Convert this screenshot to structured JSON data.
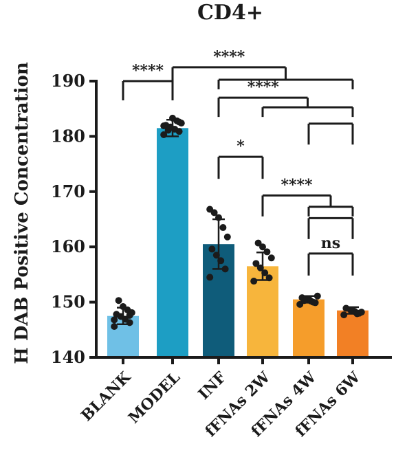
{
  "chart_data": {
    "type": "bar",
    "title": "CD4+",
    "xlabel": "",
    "ylabel": "H DAB Positive Concentration",
    "ylim": [
      140,
      190
    ],
    "yticks": [
      140,
      150,
      160,
      170,
      180,
      190
    ],
    "categories": [
      "BLANK",
      "MODEL",
      "INF",
      "fFNAs 2W",
      "fFNAs 4W",
      "fFNAs 6W"
    ],
    "values": [
      147.5,
      181.5,
      160.5,
      156.5,
      150.5,
      148.5
    ],
    "errors": [
      1.5,
      1.5,
      4.5,
      2.5,
      0.6,
      0.6
    ],
    "colors": [
      "#6fc0e6",
      "#1d9ec4",
      "#0f5c7a",
      "#f7b53c",
      "#f59d2b",
      "#f28025"
    ],
    "points": [
      [
        145.6,
        146.3,
        146.9,
        147.4,
        147.8,
        148.1,
        148.6,
        149.2,
        150.3,
        146.8,
        147.6
      ],
      [
        180.3,
        180.9,
        181.3,
        181.7,
        182.0,
        182.4,
        182.8,
        183.3,
        181.1,
        181.9,
        182.6
      ],
      [
        154.5,
        156.0,
        157.5,
        158.5,
        159.6,
        161.8,
        163.5,
        165.3,
        166.2,
        166.8
      ],
      [
        153.8,
        154.4,
        155.3,
        156.2,
        157.0,
        158.0,
        159.1,
        160.0,
        160.7
      ],
      [
        149.6,
        149.9,
        150.2,
        150.5,
        150.8,
        151.1,
        150.0,
        150.6,
        150.3
      ],
      [
        147.7,
        148.0,
        148.3,
        148.6,
        148.9,
        148.2,
        147.9,
        148.5
      ]
    ],
    "significance": [
      {
        "label": "****",
        "top": 190,
        "bottom": 189.5,
        "groups": [
          [
            0,
            0
          ],
          [
            1,
            1
          ]
        ]
      },
      {
        "label": "****",
        "top": 192.5,
        "bottom": 191.5,
        "groups": [
          [
            1,
            1
          ],
          [
            2,
            5
          ]
        ]
      },
      {
        "label": "****",
        "top": 187,
        "bottom": 186.5,
        "groups": [
          [
            2,
            2
          ],
          [
            3,
            5
          ]
        ]
      },
      {
        "label": "*",
        "top": 176.3,
        "bottom": 175.3,
        "groups": [
          [
            2,
            2
          ],
          [
            3,
            3
          ]
        ]
      },
      {
        "label": "****",
        "top": 169.3,
        "bottom": 168.5,
        "groups": [
          [
            3,
            3
          ],
          [
            4,
            5
          ]
        ]
      },
      {
        "label": "ns",
        "top": 158.8,
        "bottom": 157.8,
        "groups": [
          [
            4,
            4
          ],
          [
            5,
            5
          ]
        ]
      }
    ],
    "secondary_brackets": [
      {
        "top": 182.3,
        "bottom": 181.5,
        "groups": [
          [
            4,
            4
          ],
          [
            5,
            5
          ]
        ]
      },
      {
        "top": 165.2,
        "bottom": 164.4,
        "groups": [
          [
            4,
            4
          ],
          [
            5,
            5
          ]
        ]
      }
    ]
  }
}
